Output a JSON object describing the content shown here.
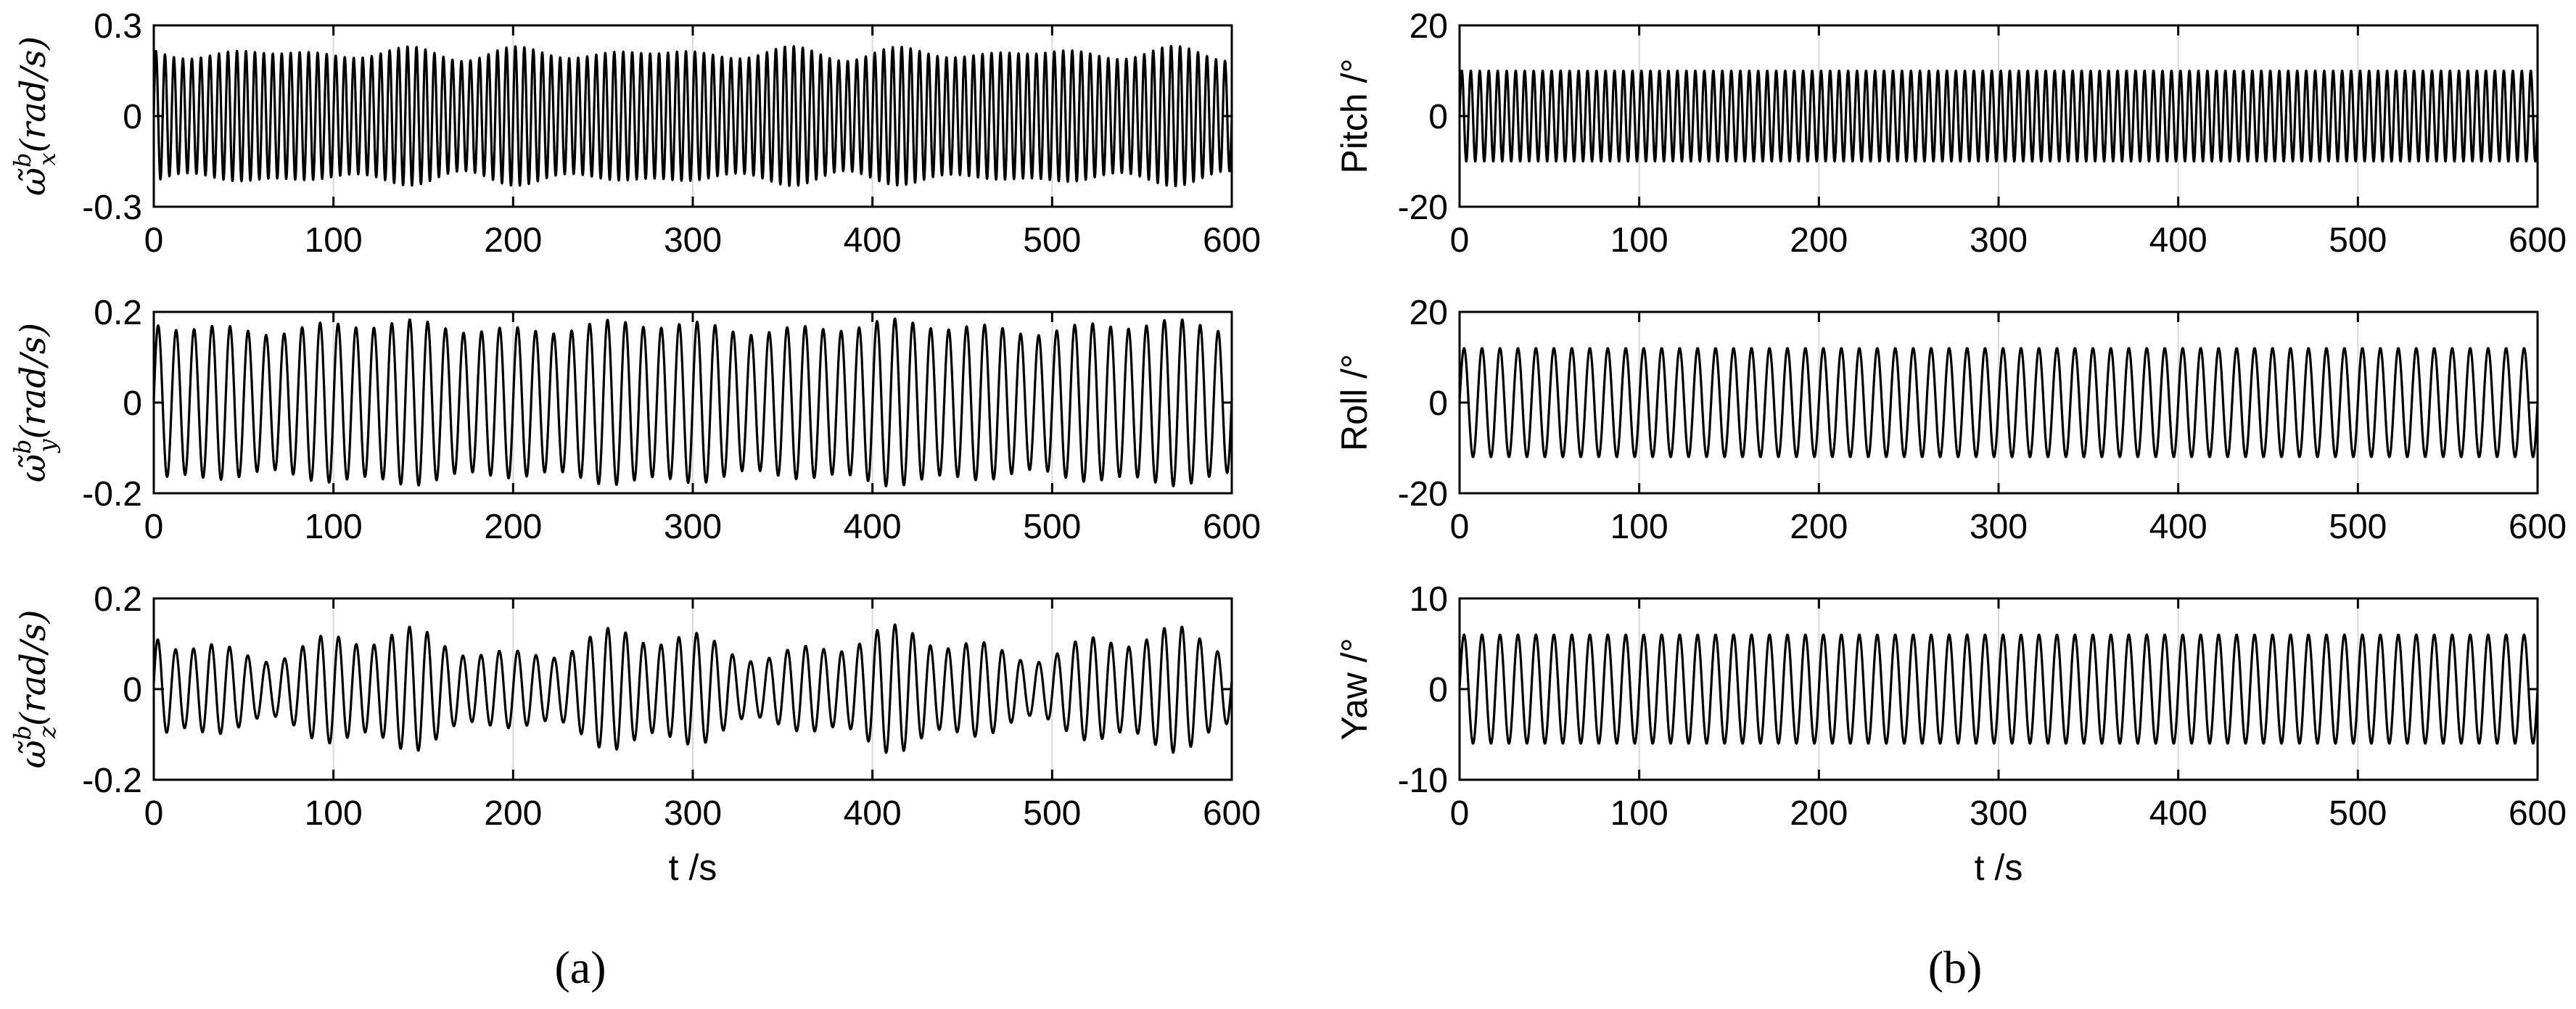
{
  "chart_data": [
    {
      "type": "line",
      "panel": "a",
      "ylabel_parts": {
        "sym": "ω̃",
        "sup": "b",
        "sub": "x",
        "unit": "(rad/s)"
      },
      "xlabel": "",
      "xlim": [
        0,
        600
      ],
      "ylim": [
        -0.3,
        0.3
      ],
      "x_ticks": [
        "0",
        "100",
        "200",
        "300",
        "400",
        "500",
        "600"
      ],
      "y_ticks": [
        "-0.3",
        "0",
        "0.3"
      ],
      "series": [
        {
          "amplitude": 0.22,
          "frequency_hz": 0.2,
          "waveform": "beat",
          "beat_ratio": 0.06
        }
      ]
    },
    {
      "type": "line",
      "panel": "a",
      "ylabel_parts": {
        "sym": "ω̃",
        "sup": "b",
        "sub": "y",
        "unit": "(rad/s)"
      },
      "xlabel": "",
      "xlim": [
        0,
        600
      ],
      "ylim": [
        -0.2,
        0.2
      ],
      "x_ticks": [
        "0",
        "100",
        "200",
        "300",
        "400",
        "500",
        "600"
      ],
      "y_ticks": [
        "-0.2",
        "0",
        "0.2"
      ],
      "series": [
        {
          "amplitude": 0.175,
          "frequency_hz": 0.1,
          "waveform": "beat",
          "beat_ratio": 0.05
        }
      ]
    },
    {
      "type": "line",
      "panel": "a",
      "ylabel_parts": {
        "sym": "ω̃",
        "sup": "b",
        "sub": "z",
        "unit": "(rad/s)"
      },
      "xlabel": "t /s",
      "xlim": [
        0,
        600
      ],
      "ylim": [
        -0.2,
        0.2
      ],
      "x_ticks": [
        "0",
        "100",
        "200",
        "300",
        "400",
        "500",
        "600"
      ],
      "y_ticks": [
        "-0.2",
        "0",
        "0.2"
      ],
      "series": [
        {
          "amplitude": 0.12,
          "frequency_hz": 0.1,
          "waveform": "beat",
          "beat_ratio": 0.2
        }
      ]
    },
    {
      "type": "line",
      "panel": "b",
      "ylabel": "Pitch /°",
      "xlabel": "",
      "xlim": [
        0,
        600
      ],
      "ylim": [
        -20,
        20
      ],
      "x_ticks": [
        "0",
        "100",
        "200",
        "300",
        "400",
        "500",
        "600"
      ],
      "y_ticks": [
        "-20",
        "0",
        "20"
      ],
      "series": [
        {
          "amplitude": 10,
          "frequency_hz": 0.2,
          "waveform": "sine"
        }
      ]
    },
    {
      "type": "line",
      "panel": "b",
      "ylabel": "Roll /°",
      "xlabel": "",
      "xlim": [
        0,
        600
      ],
      "ylim": [
        -20,
        20
      ],
      "x_ticks": [
        "0",
        "100",
        "200",
        "300",
        "400",
        "500",
        "600"
      ],
      "y_ticks": [
        "-20",
        "0",
        "20"
      ],
      "series": [
        {
          "amplitude": 12,
          "frequency_hz": 0.1,
          "waveform": "sine"
        }
      ]
    },
    {
      "type": "line",
      "panel": "b",
      "ylabel": "Yaw /°",
      "xlabel": "t /s",
      "xlim": [
        0,
        600
      ],
      "ylim": [
        -10,
        10
      ],
      "x_ticks": [
        "0",
        "100",
        "200",
        "300",
        "400",
        "500",
        "600"
      ],
      "y_ticks": [
        "-10",
        "0",
        "10"
      ],
      "series": [
        {
          "amplitude": 6,
          "frequency_hz": 0.1,
          "waveform": "sine"
        }
      ]
    }
  ],
  "captions": {
    "a": "(a)",
    "b": "(b)"
  },
  "colors": {
    "line": "#000000",
    "grid": "#d9d9d9",
    "background": "#ffffff"
  }
}
